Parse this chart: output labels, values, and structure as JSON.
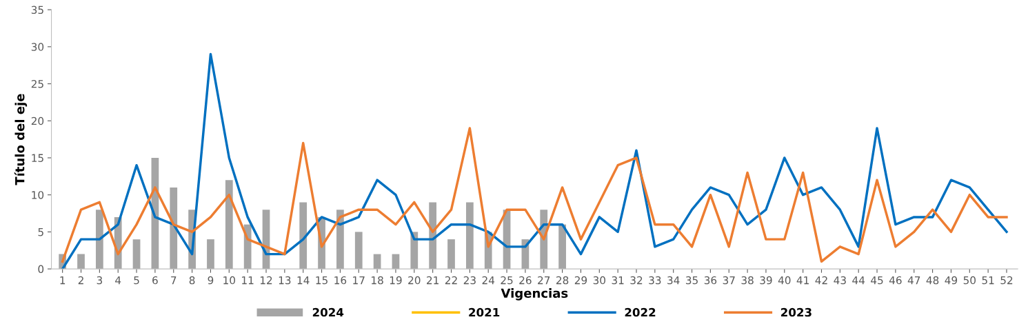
{
  "chart_data": {
    "type": "bar",
    "xlabel": "Vigencias",
    "ylabel": "Título del eje",
    "categories": [
      "1",
      "2",
      "3",
      "4",
      "5",
      "6",
      "7",
      "8",
      "9",
      "10",
      "11",
      "12",
      "13",
      "14",
      "15",
      "16",
      "17",
      "18",
      "19",
      "20",
      "21",
      "22",
      "23",
      "24",
      "25",
      "26",
      "27",
      "28",
      "29",
      "30",
      "31",
      "32",
      "33",
      "34",
      "35",
      "36",
      "37",
      "38",
      "39",
      "40",
      "41",
      "42",
      "43",
      "44",
      "45",
      "46",
      "47",
      "48",
      "49",
      "50",
      "51",
      "52"
    ],
    "series": [
      {
        "name": "2024",
        "color": "#a5a5a5",
        "values": [
          2,
          2,
          8,
          7,
          4,
          15,
          11,
          8,
          4,
          12,
          6,
          8,
          0,
          9,
          7,
          8,
          5,
          2,
          2,
          5,
          9,
          4,
          9,
          5,
          8,
          4,
          8,
          6,
          null,
          null,
          null,
          null,
          null,
          null,
          null,
          null,
          null,
          null,
          null,
          null,
          null,
          null,
          null,
          null,
          null,
          null,
          null,
          null,
          null,
          null,
          null,
          null
        ]
      },
      {
        "name": "2021",
        "type": "line",
        "color": "#ffc000",
        "values": [
          null,
          null,
          null,
          null,
          null,
          null,
          null,
          null,
          null,
          null,
          null,
          null,
          null,
          null,
          null,
          null,
          null,
          null,
          null,
          null,
          null,
          null,
          null,
          null,
          null,
          null,
          null,
          null,
          null,
          null,
          null,
          null,
          null,
          null,
          null,
          null,
          null,
          null,
          null,
          null,
          null,
          null,
          null,
          null,
          null,
          null,
          null,
          null,
          null,
          null,
          null,
          null
        ]
      },
      {
        "name": "2022",
        "type": "line",
        "color": "#0070c0",
        "values": [
          0,
          4,
          4,
          6,
          14,
          7,
          6,
          2,
          29,
          15,
          7,
          2,
          2,
          4,
          7,
          6,
          7,
          12,
          10,
          4,
          4,
          6,
          6,
          5,
          3,
          3,
          6,
          6,
          2,
          7,
          5,
          16,
          3,
          4,
          8,
          11,
          10,
          6,
          8,
          15,
          10,
          11,
          8,
          3,
          19,
          6,
          7,
          7,
          12,
          11,
          8,
          5
        ]
      },
      {
        "name": "2023",
        "type": "line",
        "color": "#ed7d31",
        "values": [
          1,
          8,
          9,
          2,
          6,
          11,
          6,
          5,
          7,
          10,
          4,
          3,
          2,
          17,
          3,
          7,
          8,
          8,
          6,
          9,
          5,
          8,
          19,
          3,
          8,
          8,
          4,
          11,
          4,
          9,
          14,
          15,
          6,
          6,
          3,
          10,
          3,
          13,
          4,
          4,
          13,
          1,
          3,
          2,
          12,
          3,
          5,
          8,
          5,
          10,
          7,
          7
        ]
      }
    ],
    "ylim": [
      0,
      35
    ],
    "yticks": [
      0,
      5,
      10,
      15,
      20,
      25,
      30,
      35
    ],
    "grid": false,
    "legend": "bottom",
    "marker": "none",
    "line_style": "solid"
  }
}
